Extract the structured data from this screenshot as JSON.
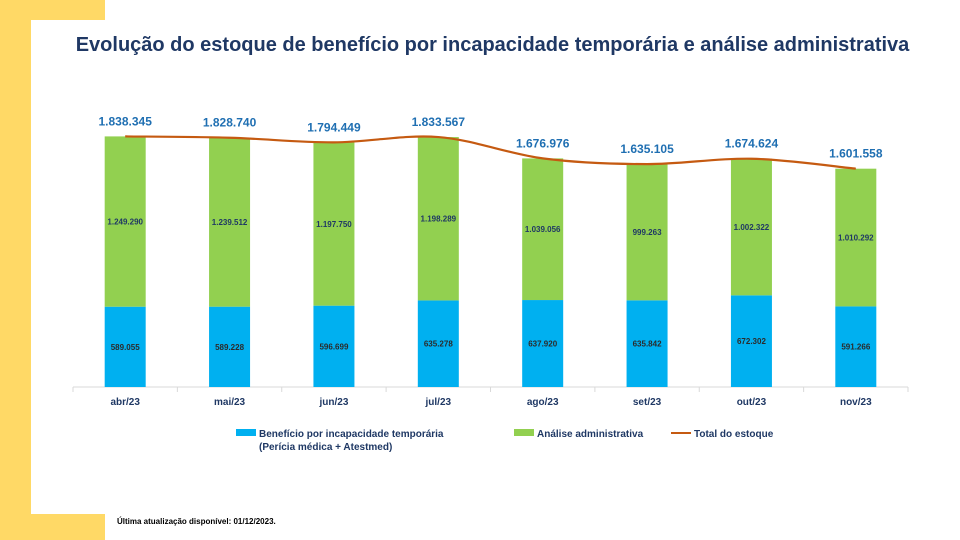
{
  "colors": {
    "blue": "#00b0f0",
    "green": "#92d050",
    "line": "#c55a11",
    "title": "#1f3864",
    "total": "#1f6fb2",
    "accent": "#ffd966"
  },
  "chart_data": {
    "type": "bar",
    "stacked": true,
    "title": "Evolução do estoque de benefício por incapacidade temporária e análise administrativa",
    "categories": [
      "abr/23",
      "mai/23",
      "jun/23",
      "jul/23",
      "ago/23",
      "set/23",
      "out/23",
      "nov/23"
    ],
    "series": [
      {
        "name": "Benefício por incapacidade temporária",
        "name_line2": "(Perícia médica + Atestmed)",
        "values": [
          589055,
          589228,
          596699,
          635278,
          637920,
          635842,
          672302,
          591266
        ],
        "labels": [
          "589.055",
          "589.228",
          "596.699",
          "635.278",
          "637.920",
          "635.842",
          "672.302",
          "591.266"
        ]
      },
      {
        "name": "Análise administrativa",
        "values": [
          1249290,
          1239512,
          1197750,
          1198289,
          1039056,
          999263,
          1002322,
          1010292
        ],
        "labels": [
          "1.249.290",
          "1.239.512",
          "1.197.750",
          "1.198.289",
          "1.039.056",
          "999.263",
          "1.002.322",
          "1.010.292"
        ]
      }
    ],
    "total": {
      "name": "Total do estoque",
      "type": "line",
      "values": [
        1838345,
        1828740,
        1794449,
        1833567,
        1676976,
        1635105,
        1674624,
        1601558
      ],
      "labels": [
        "1.838.345",
        "1.828.740",
        "1.794.449",
        "1.833.567",
        "1.676.976",
        "1.635.105",
        "1.674.624",
        "1.601.558"
      ]
    },
    "ylim": [
      0,
      1900000
    ],
    "grid": false,
    "legend": "bottom"
  },
  "footnote": "Última atualização disponível:  01/12/2023."
}
